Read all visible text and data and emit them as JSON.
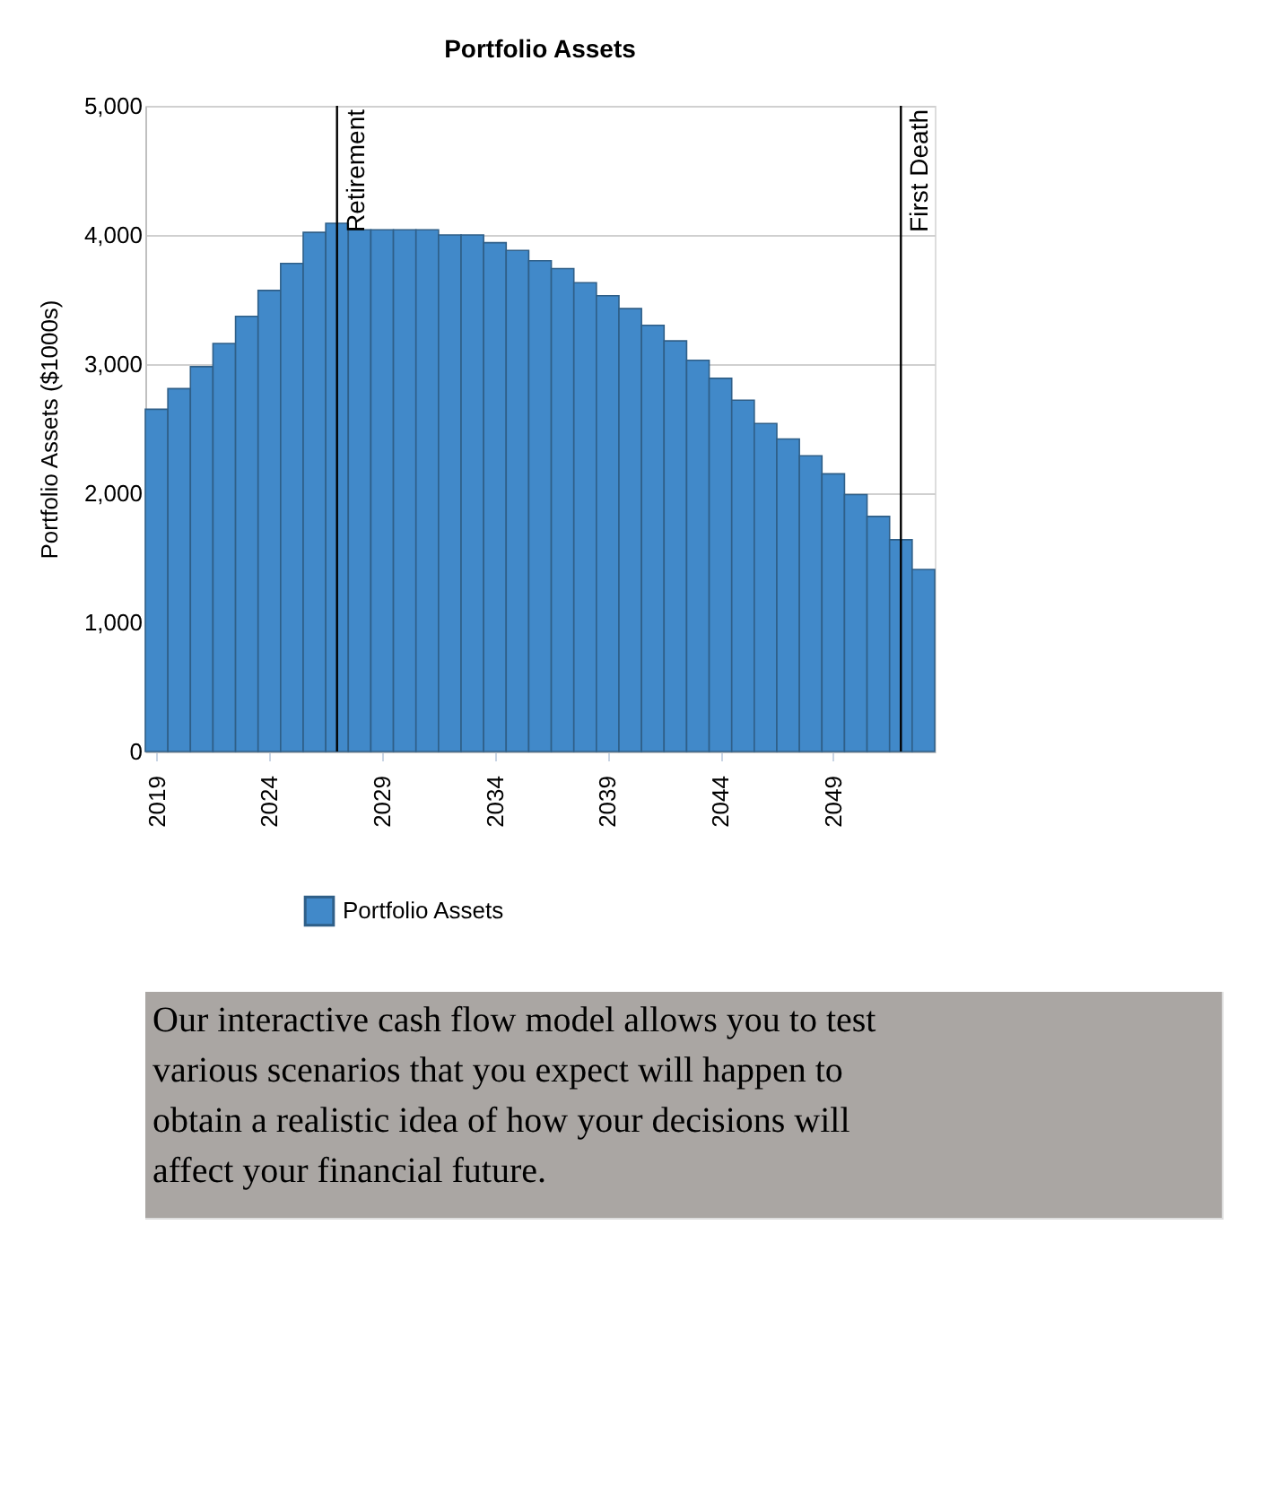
{
  "chart_data": {
    "type": "bar",
    "title": "Portfolio Assets",
    "ylabel": "Portfolio Assets ($1000s)",
    "x": [
      2019,
      2020,
      2021,
      2022,
      2023,
      2024,
      2025,
      2026,
      2027,
      2028,
      2029,
      2030,
      2031,
      2032,
      2033,
      2034,
      2035,
      2036,
      2037,
      2038,
      2039,
      2040,
      2041,
      2042,
      2043,
      2044,
      2045,
      2046,
      2047,
      2048,
      2049,
      2050,
      2051,
      2052,
      2053
    ],
    "series": [
      {
        "name": "Portfolio Assets",
        "color": "#4189c9",
        "values": [
          2650,
          2810,
          2980,
          3160,
          3370,
          3570,
          3780,
          4020,
          4090,
          4040,
          4040,
          4040,
          4040,
          4000,
          4000,
          3940,
          3880,
          3800,
          3740,
          3630,
          3530,
          3430,
          3300,
          3180,
          3030,
          2890,
          2720,
          2540,
          2420,
          2290,
          2150,
          1990,
          1820,
          1640,
          1410
        ]
      }
    ],
    "xlim": [
      2018.5,
      2053.5
    ],
    "xticks": [
      2019,
      2024,
      2029,
      2034,
      2039,
      2044,
      2049
    ],
    "ylim": [
      0,
      5000
    ],
    "yticks": [
      0,
      {
        "value": 1000,
        "label": "1,000"
      },
      {
        "value": 2000,
        "label": "2,000"
      },
      {
        "value": 3000,
        "label": "3,000"
      },
      {
        "value": 4000,
        "label": "4,000"
      },
      {
        "value": 5000,
        "label": "5,000"
      }
    ],
    "grid": "y",
    "legend": "bottom",
    "ref_lines": [
      {
        "axis": "x",
        "value": 2027,
        "label": "Retirement",
        "color": "#000000"
      },
      {
        "axis": "x",
        "value": 2052,
        "label": "First Death",
        "color": "#000000"
      }
    ],
    "annotations": [
      "Our interactive cash flow model allows you to test various scenarios that you expect will happen to obtain a realistic idea of how your decisions will affect your financial future."
    ]
  }
}
